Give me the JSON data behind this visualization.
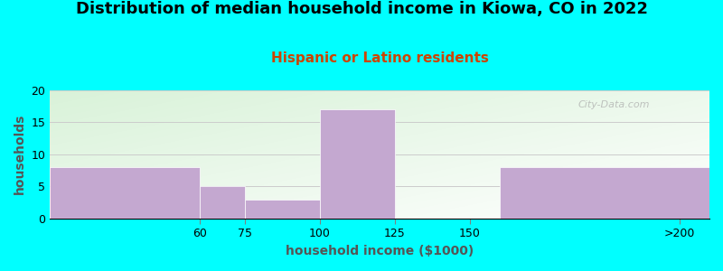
{
  "title": "Distribution of median household income in Kiowa, CO in 2022",
  "subtitle": "Hispanic or Latino residents",
  "xlabel": "household income ($1000)",
  "ylabel": "households",
  "background_color": "#00FFFF",
  "bar_color": "#C4A8D0",
  "bar_edge_color": "#C4A8D0",
  "tick_labels": [
    "60",
    "75",
    "100",
    "125",
    "150",
    ">200"
  ],
  "tick_positions": [
    60,
    75,
    100,
    125,
    150,
    220
  ],
  "bar_lefts": [
    10,
    60,
    75,
    100,
    125,
    160
  ],
  "bar_rights": [
    60,
    75,
    100,
    125,
    150,
    230
  ],
  "values": [
    8,
    5,
    3,
    17,
    0,
    8
  ],
  "xlim": [
    10,
    230
  ],
  "ylim": [
    0,
    20
  ],
  "yticks": [
    0,
    5,
    10,
    15,
    20
  ],
  "grid_color": "#cccccc",
  "title_fontsize": 13,
  "subtitle_fontsize": 11,
  "subtitle_color": "#cc4400",
  "axis_label_fontsize": 10,
  "tick_fontsize": 9,
  "watermark": "City-Data.com"
}
